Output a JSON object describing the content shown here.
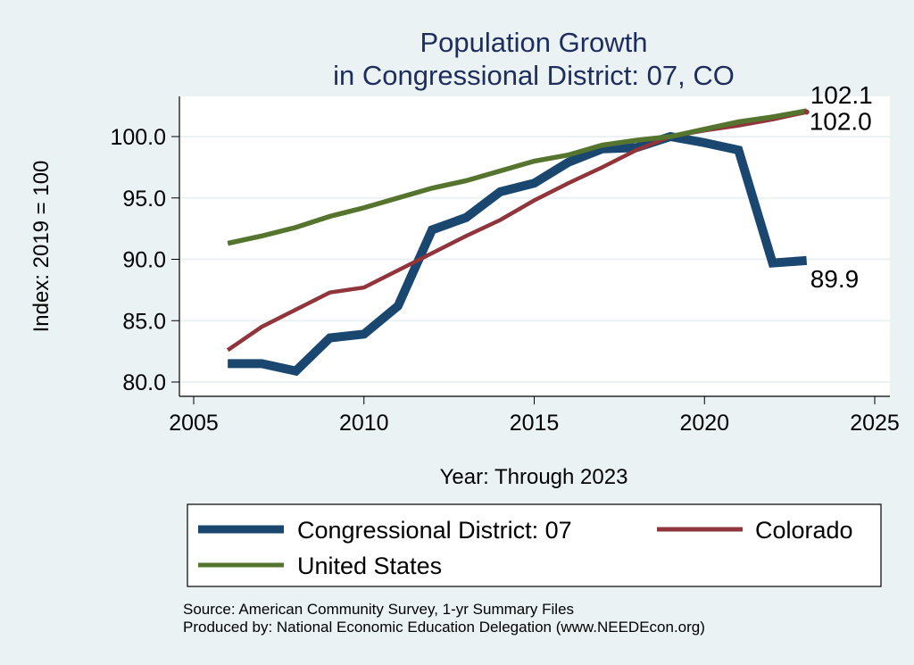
{
  "chart_data": {
    "type": "line",
    "title": [
      "Population Growth",
      "in Congressional District: 07, CO"
    ],
    "xlabel": "Year: Through 2023",
    "ylabel": "Index: 2019 = 100",
    "xlim": [
      2005,
      2025
    ],
    "ylim": [
      79.2,
      102.4
    ],
    "xticks": [
      2005,
      2010,
      2015,
      2020,
      2025
    ],
    "xtick_labels": [
      "2005",
      "2010",
      "2015",
      "2020",
      "2025"
    ],
    "yticks": [
      80,
      85,
      90,
      95,
      100
    ],
    "ytick_labels": [
      "80.0",
      "85.0",
      "90.0",
      "95.0",
      "100.0"
    ],
    "grid": "horizontal",
    "legend_position": "bottom",
    "x": [
      2006,
      2007,
      2008,
      2009,
      2010,
      2011,
      2012,
      2013,
      2014,
      2015,
      2016,
      2017,
      2018,
      2019,
      2020,
      2021,
      2022,
      2023
    ],
    "series": [
      {
        "name": "Congressional District: 07",
        "color": "#1a476f",
        "values": [
          81.5,
          81.5,
          80.9,
          83.6,
          83.9,
          86.2,
          92.4,
          93.4,
          95.5,
          96.2,
          97.9,
          99.0,
          99.1,
          100.0,
          99.5,
          98.9,
          89.7,
          89.9
        ],
        "end_label": "89.9"
      },
      {
        "name": "Colorado",
        "color": "#90353b",
        "values": [
          82.6,
          84.5,
          85.9,
          87.3,
          87.7,
          89.1,
          90.5,
          91.9,
          93.2,
          94.8,
          96.2,
          97.5,
          98.9,
          100.0,
          100.5,
          100.9,
          101.4,
          102.0
        ],
        "end_label": "102.0"
      },
      {
        "name": "United States",
        "color": "#55752f",
        "values": [
          91.3,
          91.9,
          92.6,
          93.5,
          94.2,
          95.0,
          95.8,
          96.4,
          97.2,
          98.0,
          98.5,
          99.3,
          99.7,
          100.0,
          100.6,
          101.2,
          101.6,
          102.1
        ],
        "end_label": "102.1"
      }
    ],
    "legend": [
      {
        "label": "Congressional District: 07",
        "color": "#1a476f"
      },
      {
        "label": "Colorado",
        "color": "#90353b"
      },
      {
        "label": "United States",
        "color": "#55752f"
      }
    ],
    "notes": [
      "Source: American Community Survey, 1-yr Summary Files",
      "Produced by: National Economic Education Delegation (www.NEEDEcon.org)"
    ]
  }
}
